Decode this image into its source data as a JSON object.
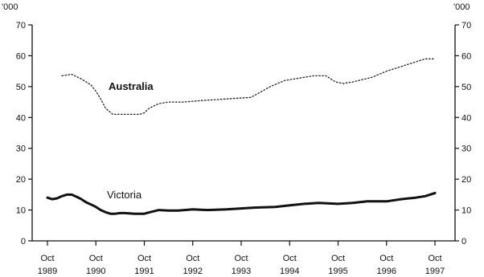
{
  "chart_data": {
    "type": "line",
    "unit_left": "'000",
    "unit_right": "'000",
    "ylim": [
      0,
      70
    ],
    "yticks": [
      0,
      10,
      20,
      30,
      40,
      50,
      60,
      70
    ],
    "categories": [
      {
        "month": "Oct",
        "year": "1989"
      },
      {
        "month": "Oct",
        "year": "1990"
      },
      {
        "month": "Oct",
        "year": "1991"
      },
      {
        "month": "Oct",
        "year": "1992"
      },
      {
        "month": "Oct",
        "year": "1993"
      },
      {
        "month": "Oct",
        "year": "1994"
      },
      {
        "month": "Oct",
        "year": "1995"
      },
      {
        "month": "Oct",
        "year": "1996"
      },
      {
        "month": "Oct",
        "year": "1997"
      }
    ],
    "series": [
      {
        "name": "Australia",
        "style": "dotted",
        "color": "#222222",
        "x": [
          0.3,
          0.5,
          0.7,
          0.9,
          1.0,
          1.1,
          1.2,
          1.35,
          1.5,
          1.7,
          1.9,
          2.0,
          2.1,
          2.3,
          2.5,
          2.8,
          3.2,
          3.7,
          4.2,
          4.6,
          4.9,
          5.1,
          5.3,
          5.5,
          5.75,
          5.95,
          6.1,
          6.3,
          6.7,
          7.0,
          7.3,
          7.6,
          7.8,
          8.0
        ],
        "values": [
          53.5,
          54.0,
          52.5,
          50.5,
          48.5,
          46.0,
          43.0,
          41.0,
          41.0,
          41.0,
          41.0,
          41.5,
          43.0,
          44.5,
          45.0,
          45.0,
          45.5,
          46.0,
          46.5,
          50.0,
          52.0,
          52.5,
          53.0,
          53.5,
          53.5,
          51.5,
          51.0,
          51.5,
          53.0,
          55.0,
          56.5,
          58.0,
          59.0,
          59.0
        ]
      },
      {
        "name": "Victoria",
        "style": "solid",
        "color": "#111111",
        "x": [
          0.0,
          0.1,
          0.2,
          0.3,
          0.4,
          0.5,
          0.6,
          0.7,
          0.8,
          0.9,
          1.0,
          1.1,
          1.2,
          1.3,
          1.4,
          1.5,
          1.6,
          1.8,
          2.0,
          2.1,
          2.2,
          2.3,
          2.5,
          2.7,
          3.0,
          3.3,
          3.7,
          4.0,
          4.3,
          4.7,
          5.0,
          5.3,
          5.6,
          6.0,
          6.3,
          6.6,
          7.0,
          7.3,
          7.6,
          7.8,
          8.0
        ],
        "values": [
          14.0,
          13.5,
          13.8,
          14.5,
          15.0,
          15.0,
          14.3,
          13.5,
          12.5,
          11.8,
          11.0,
          10.0,
          9.3,
          8.8,
          8.8,
          9.0,
          9.0,
          8.8,
          8.8,
          9.2,
          9.6,
          10.0,
          9.8,
          9.8,
          10.2,
          10.0,
          10.2,
          10.5,
          10.8,
          11.0,
          11.5,
          12.0,
          12.3,
          12.0,
          12.3,
          12.8,
          12.8,
          13.5,
          14.0,
          14.5,
          15.5
        ]
      }
    ],
    "grid": false,
    "legend": "inline-labels"
  }
}
